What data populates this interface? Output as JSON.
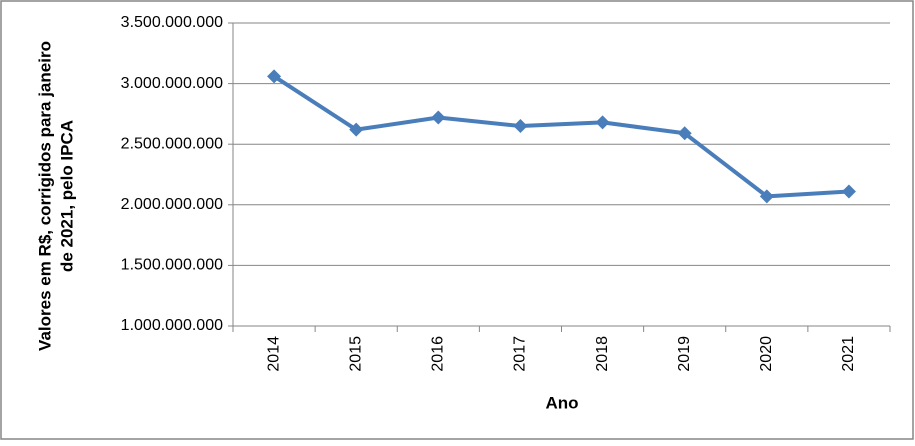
{
  "chart_data": {
    "type": "line",
    "x_label": "Ano",
    "y_label": [
      "Valores em R$, corrigidos para janeiro",
      "de 2021, pelo IPCA"
    ],
    "categories": [
      "2014",
      "2015",
      "2016",
      "2017",
      "2018",
      "2019",
      "2020",
      "2021"
    ],
    "values": [
      3060000000,
      2620000000,
      2720000000,
      2650000000,
      2680000000,
      2590000000,
      2070000000,
      2110000000
    ],
    "color": "#4a7ebb",
    "ylim": [
      1000000000,
      3500000000
    ],
    "yticks": [
      {
        "value": 1000000000,
        "label": "1.000.000.000"
      },
      {
        "value": 1500000000,
        "label": "1.500.000.000"
      },
      {
        "value": 2000000000,
        "label": "2.000.000.000"
      },
      {
        "value": 2500000000,
        "label": "2.500.000.000"
      },
      {
        "value": 3000000000,
        "label": "3.000.000.000"
      },
      {
        "value": 3500000000,
        "label": "3.500.000.000"
      }
    ],
    "grid": true
  }
}
